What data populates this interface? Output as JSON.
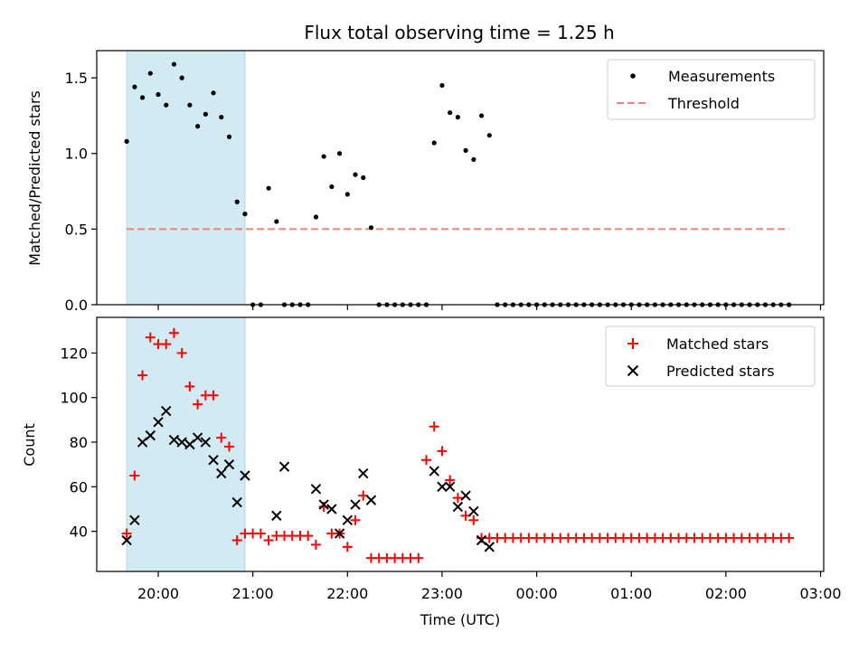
{
  "title": "Flux total observing time = 1.25 h",
  "colors": {
    "band": "#add8e6",
    "threshold": "#f08080",
    "matched": "#ff0000",
    "predicted": "#000000",
    "measurement": "#000000"
  },
  "chart_data": [
    {
      "type": "scatter",
      "ylabel": "Matched/Predicted stars",
      "ylim": [
        0,
        1.68
      ],
      "y_ticks": [
        "0.0",
        "0.5",
        "1.0",
        "1.5"
      ],
      "legend_position": "top-right",
      "legend": {
        "measurements": "Measurements",
        "threshold": "Threshold"
      },
      "highlight_span": [
        "19:40",
        "20:55"
      ],
      "threshold": {
        "value": 0.5,
        "x_range": [
          "19:40",
          "02:40"
        ]
      },
      "series": [
        {
          "name": "Measurements",
          "style": "dot",
          "x": [
            "19:40",
            "19:45",
            "19:50",
            "19:55",
            "20:00",
            "20:05",
            "20:10",
            "20:15",
            "20:20",
            "20:25",
            "20:30",
            "20:35",
            "20:40",
            "20:45",
            "20:50",
            "20:55",
            "21:00",
            "21:05",
            "21:10",
            "21:15",
            "21:20",
            "21:25",
            "21:30",
            "21:35",
            "21:40",
            "21:45",
            "21:50",
            "21:55",
            "22:00",
            "22:05",
            "22:10",
            "22:15",
            "22:20",
            "22:25",
            "22:30",
            "22:35",
            "22:40",
            "22:45",
            "22:50",
            "22:55",
            "23:00",
            "23:05",
            "23:10",
            "23:15",
            "23:20",
            "23:25",
            "23:30",
            "23:35",
            "23:40",
            "23:45",
            "23:50",
            "23:55",
            "00:00",
            "00:05",
            "00:10",
            "00:15",
            "00:20",
            "00:25",
            "00:30",
            "00:35",
            "00:40",
            "00:45",
            "00:50",
            "00:55",
            "01:00",
            "01:05",
            "01:10",
            "01:15",
            "01:20",
            "01:25",
            "01:30",
            "01:35",
            "01:40",
            "01:45",
            "01:50",
            "01:55",
            "02:00",
            "02:05",
            "02:10",
            "02:15",
            "02:20",
            "02:25",
            "02:30",
            "02:35",
            "02:40"
          ],
          "y": [
            1.08,
            1.44,
            1.37,
            1.53,
            1.39,
            1.32,
            1.59,
            1.5,
            1.32,
            1.18,
            1.26,
            1.4,
            1.24,
            1.11,
            0.68,
            0.6,
            0,
            0,
            0.77,
            0.55,
            0,
            0,
            0,
            0,
            0.58,
            0.98,
            0.78,
            1.0,
            0.73,
            0.86,
            0.84,
            0.51,
            0,
            0,
            0,
            0,
            0,
            0,
            0,
            1.07,
            1.45,
            1.27,
            1.24,
            1.02,
            0.96,
            1.25,
            1.12,
            0,
            0,
            0,
            0,
            0,
            0,
            0,
            0,
            0,
            0,
            0,
            0,
            0,
            0,
            0,
            0,
            0,
            0,
            0,
            0,
            0,
            0,
            0,
            0,
            0,
            0,
            0,
            0,
            0,
            0,
            0,
            0,
            0,
            0,
            0,
            0,
            0,
            0
          ]
        }
      ]
    },
    {
      "type": "scatter",
      "title": "",
      "xlabel": "Time (UTC)",
      "ylabel": "Count",
      "ylim": [
        22,
        136
      ],
      "y_ticks": [
        "40",
        "60",
        "80",
        "100",
        "120"
      ],
      "x_ticks": [
        "20:00",
        "21:00",
        "22:00",
        "23:00",
        "00:00",
        "01:00",
        "02:00",
        "03:00"
      ],
      "x_range": [
        "19:21",
        "03:02"
      ],
      "legend_position": "top-right",
      "highlight_span": [
        "19:40",
        "20:55"
      ],
      "series": [
        {
          "name": "Matched stars",
          "style": "plus",
          "x": [
            "19:40",
            "19:45",
            "19:50",
            "19:55",
            "20:00",
            "20:05",
            "20:10",
            "20:15",
            "20:20",
            "20:25",
            "20:30",
            "20:35",
            "20:40",
            "20:45",
            "20:50",
            "20:55",
            "21:00",
            "21:05",
            "21:10",
            "21:15",
            "21:20",
            "21:25",
            "21:30",
            "21:35",
            "21:40",
            "21:45",
            "21:50",
            "21:55",
            "22:00",
            "22:05",
            "22:10",
            "22:15",
            "22:20",
            "22:25",
            "22:30",
            "22:35",
            "22:40",
            "22:45",
            "22:50",
            "22:55",
            "23:00",
            "23:05",
            "23:10",
            "23:15",
            "23:20",
            "23:25",
            "23:30",
            "23:35",
            "23:40",
            "23:45",
            "23:50",
            "23:55",
            "00:00",
            "00:05",
            "00:10",
            "00:15",
            "00:20",
            "00:25",
            "00:30",
            "00:35",
            "00:40",
            "00:45",
            "00:50",
            "00:55",
            "01:00",
            "01:05",
            "01:10",
            "01:15",
            "01:20",
            "01:25",
            "01:30",
            "01:35",
            "01:40",
            "01:45",
            "01:50",
            "01:55",
            "02:00",
            "02:05",
            "02:10",
            "02:15",
            "02:20",
            "02:25",
            "02:30",
            "02:35",
            "02:40"
          ],
          "y": [
            39,
            65,
            110,
            127,
            124,
            124,
            129,
            120,
            105,
            97,
            101,
            101,
            82,
            78,
            36,
            39,
            39,
            39,
            36,
            38,
            38,
            38,
            38,
            38,
            34,
            51,
            39,
            39,
            33,
            45,
            56,
            28,
            28,
            28,
            28,
            28,
            28,
            28,
            72,
            87,
            76,
            63,
            55,
            47,
            45,
            37,
            37,
            37,
            37,
            37,
            37,
            37,
            37,
            37,
            37,
            37,
            37,
            37,
            37,
            37,
            37,
            37,
            37,
            37,
            37,
            37,
            37,
            37,
            37,
            37,
            37,
            37,
            37,
            37,
            37,
            37,
            37,
            37,
            37,
            37,
            37,
            37,
            37,
            37,
            37
          ]
        },
        {
          "name": "Predicted stars",
          "style": "x",
          "x": [
            "19:40",
            "19:45",
            "19:50",
            "19:55",
            "20:00",
            "20:05",
            "20:10",
            "20:15",
            "20:20",
            "20:25",
            "20:30",
            "20:35",
            "20:40",
            "20:45",
            "20:50",
            "20:55",
            "21:15",
            "21:20",
            "21:40",
            "21:45",
            "21:50",
            "21:55",
            "22:00",
            "22:05",
            "22:10",
            "22:15",
            "22:55",
            "23:00",
            "23:05",
            "23:10",
            "23:15",
            "23:20",
            "23:25",
            "23:30"
          ],
          "y": [
            36,
            45,
            80,
            83,
            89,
            94,
            81,
            80,
            79,
            82,
            80,
            72,
            66,
            70,
            53,
            65,
            47,
            69,
            59,
            52,
            50,
            39,
            45,
            52,
            66,
            54,
            67,
            60,
            60,
            51,
            56,
            49,
            36,
            33
          ]
        }
      ]
    }
  ]
}
